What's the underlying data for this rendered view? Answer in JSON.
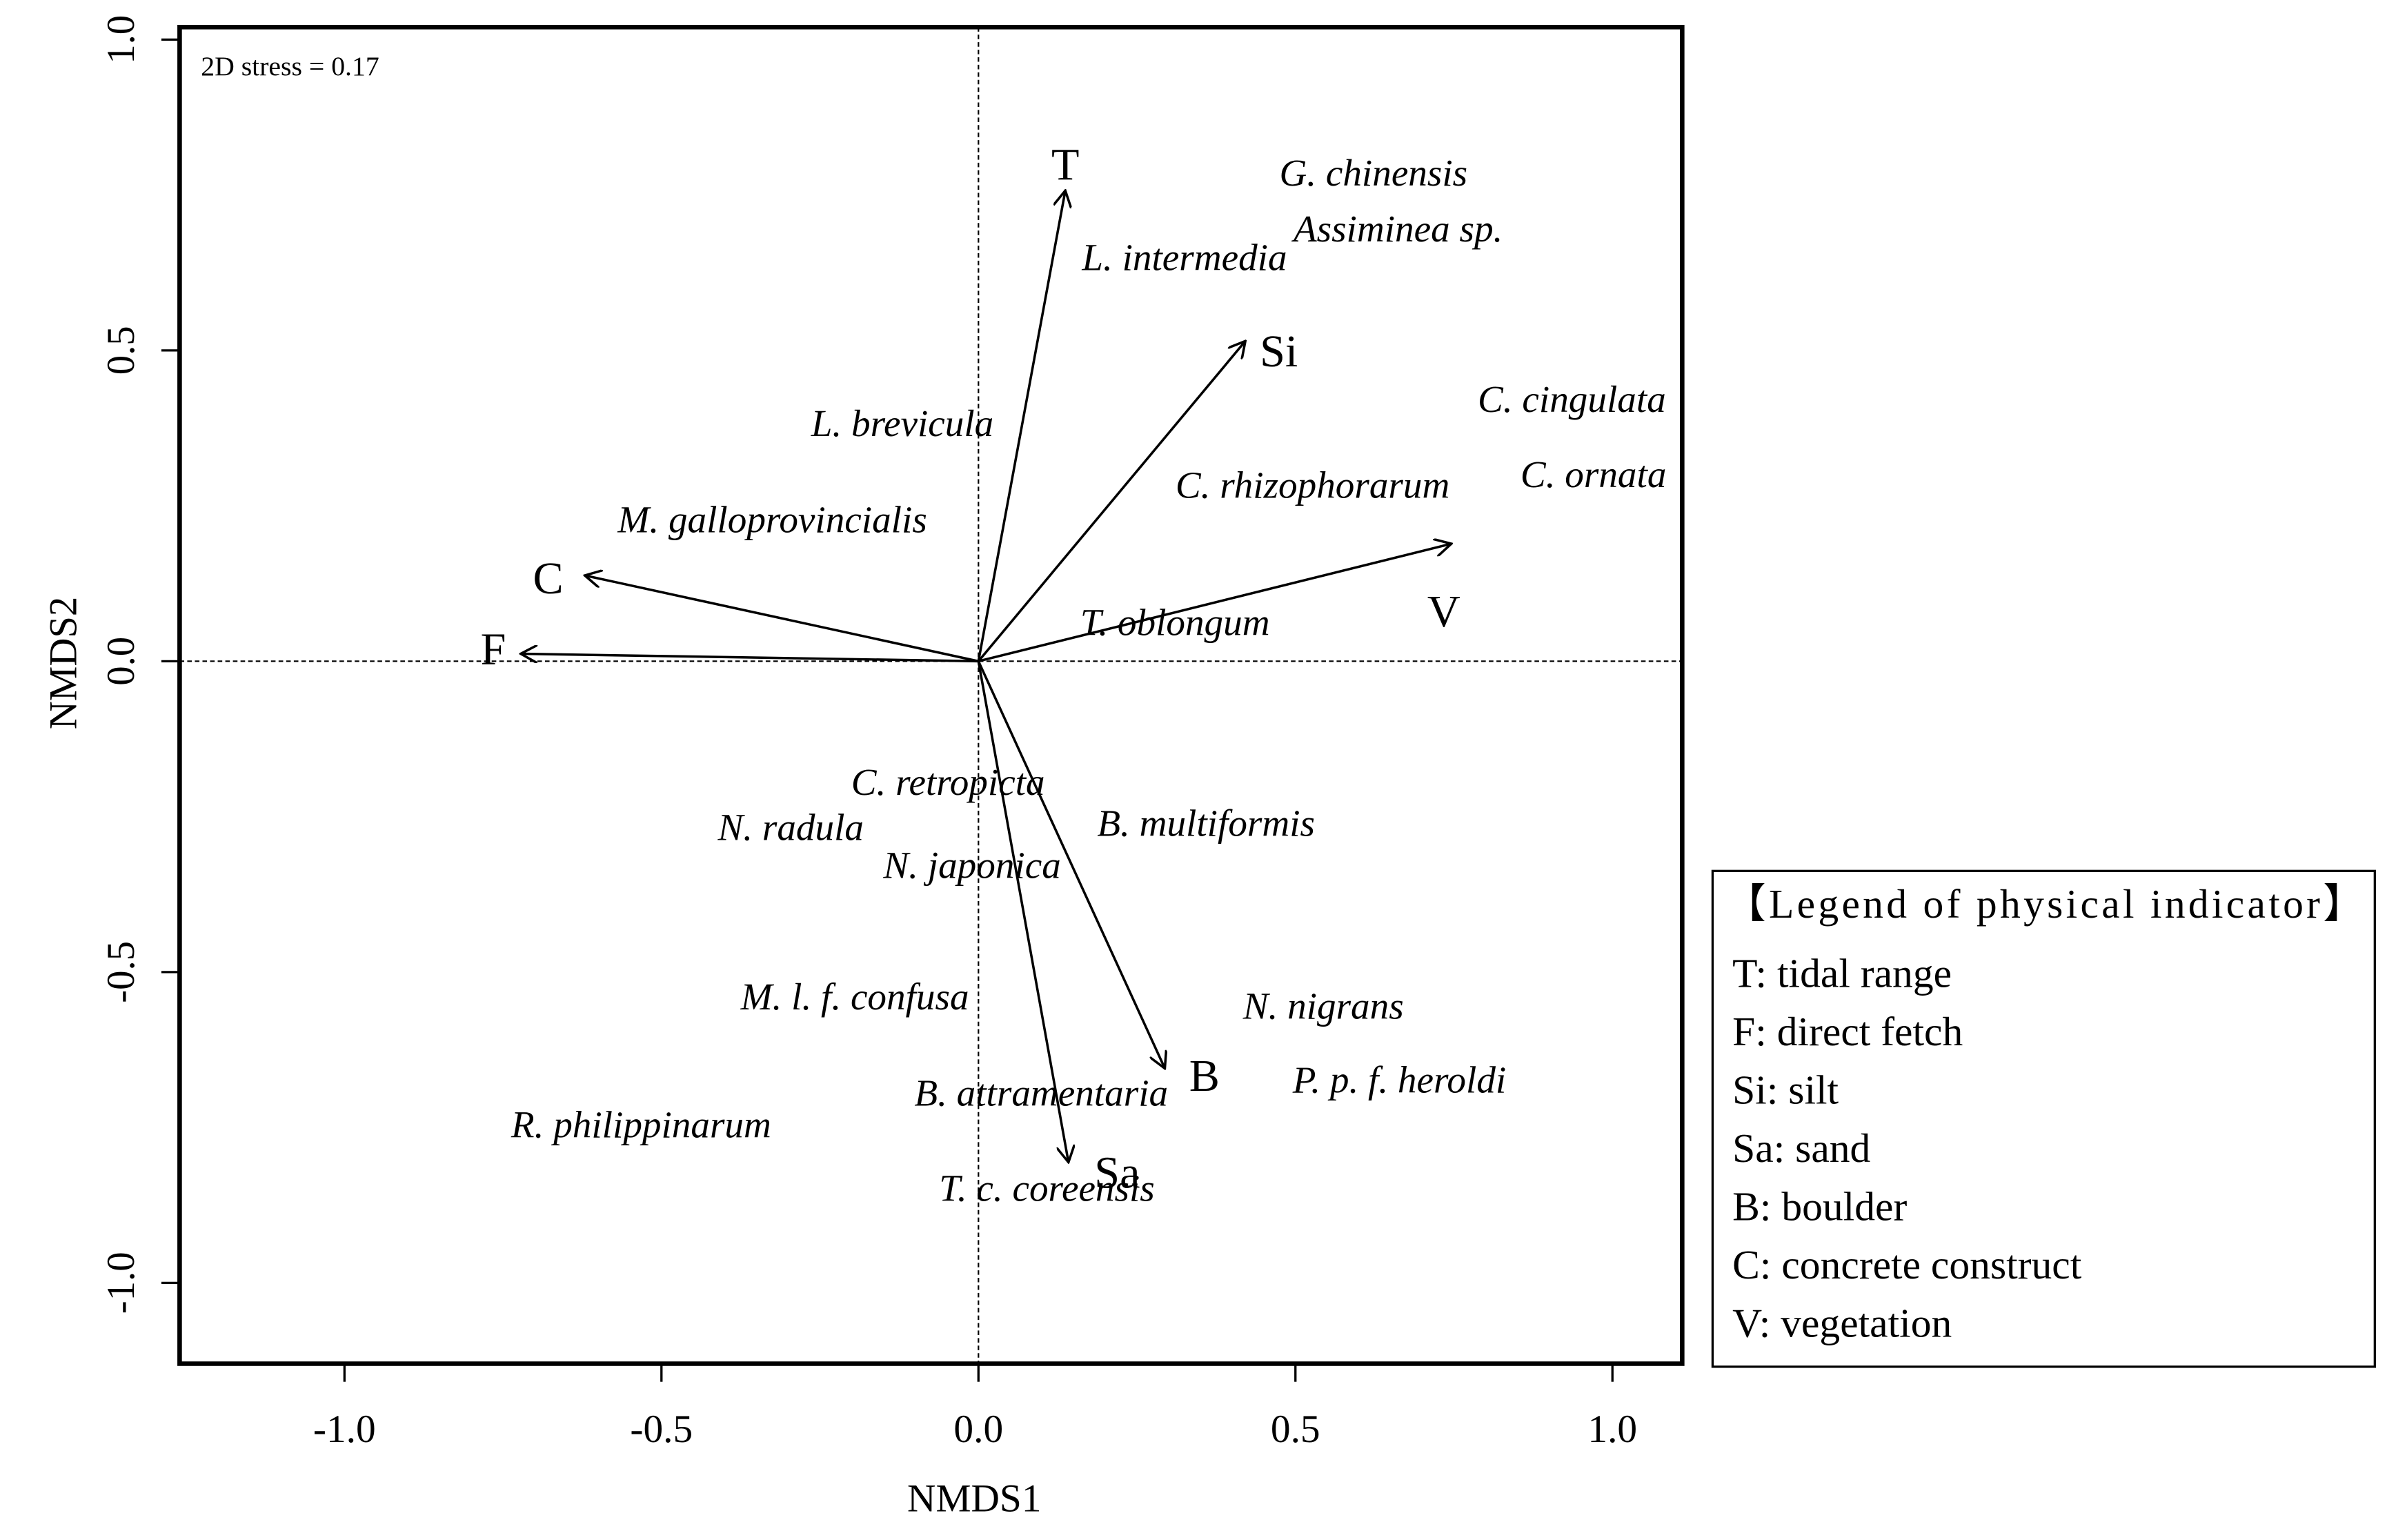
{
  "chart_data": {
    "type": "biplot",
    "annotation": "2D stress = 0.17",
    "xlabel": "NMDS1",
    "ylabel": "NMDS2",
    "xlim": [
      -1.26,
      1.11
    ],
    "ylim": [
      -1.13,
      1.02
    ],
    "xticks": [
      {
        "value": -1,
        "label": "-1.0"
      },
      {
        "value": -0.5,
        "label": "-0.5"
      },
      {
        "value": 0,
        "label": "0.0"
      },
      {
        "value": 0.5,
        "label": "0.5"
      },
      {
        "value": 1,
        "label": "1.0"
      }
    ],
    "yticks": [
      {
        "value": -1,
        "label": "-1.0"
      },
      {
        "value": -0.5,
        "label": "-0.5"
      },
      {
        "value": 0,
        "label": "0.0"
      },
      {
        "value": 0.5,
        "label": "0.5"
      },
      {
        "value": 1,
        "label": "1.0"
      }
    ],
    "vectors": [
      {
        "name": "T",
        "x": 0.137,
        "y": 0.757
      },
      {
        "name": "Si",
        "x": 0.421,
        "y": 0.515
      },
      {
        "name": "V",
        "x": 0.746,
        "y": 0.189
      },
      {
        "name": "C",
        "x": -0.621,
        "y": 0.138
      },
      {
        "name": "F",
        "x": -0.722,
        "y": 0.012
      },
      {
        "name": "B",
        "x": 0.294,
        "y": -0.655
      },
      {
        "name": "Sa",
        "x": 0.142,
        "y": -0.806
      }
    ],
    "species": [
      {
        "name": "G. chinensis",
        "x": 0.623,
        "y": 0.779
      },
      {
        "name": "Assiminea sp.",
        "x": 0.662,
        "y": 0.689
      },
      {
        "name": "L. intermedia",
        "x": 0.325,
        "y": 0.643
      },
      {
        "name": "C. cingulata",
        "x": 0.936,
        "y": 0.415
      },
      {
        "name": "L. brevicula",
        "x": -0.12,
        "y": 0.376
      },
      {
        "name": "C. ornata",
        "x": 0.97,
        "y": 0.294
      },
      {
        "name": "C. rhizophorarum",
        "x": 0.527,
        "y": 0.277
      },
      {
        "name": "M. galloprovincialis",
        "x": -0.325,
        "y": 0.221
      },
      {
        "name": "T. oblongum",
        "x": 0.31,
        "y": 0.056
      },
      {
        "name": "C. retropicta",
        "x": -0.048,
        "y": -0.201
      },
      {
        "name": "N. radula",
        "x": -0.296,
        "y": -0.274
      },
      {
        "name": "B. multiformis",
        "x": 0.359,
        "y": -0.267
      },
      {
        "name": "N. japonica",
        "x": -0.01,
        "y": -0.335
      },
      {
        "name": "M. l. f. confusa",
        "x": -0.195,
        "y": -0.546
      },
      {
        "name": "N. nigrans",
        "x": 0.544,
        "y": -0.561
      },
      {
        "name": "P. p. f. heroldi",
        "x": 0.664,
        "y": -0.68
      },
      {
        "name": "B. attramentaria",
        "x": 0.099,
        "y": -0.701
      },
      {
        "name": "R. philippinarum",
        "x": -0.532,
        "y": -0.752
      },
      {
        "name": "T. c. coreensis",
        "x": 0.108,
        "y": -0.854
      }
    ],
    "legend": {
      "title": "【Legend of physical indicator】",
      "items": [
        "T: tidal range",
        "F: direct fetch",
        "Si: silt",
        "Sa: sand",
        "B: boulder",
        "C: concrete construct",
        "V: vegetation"
      ]
    }
  }
}
